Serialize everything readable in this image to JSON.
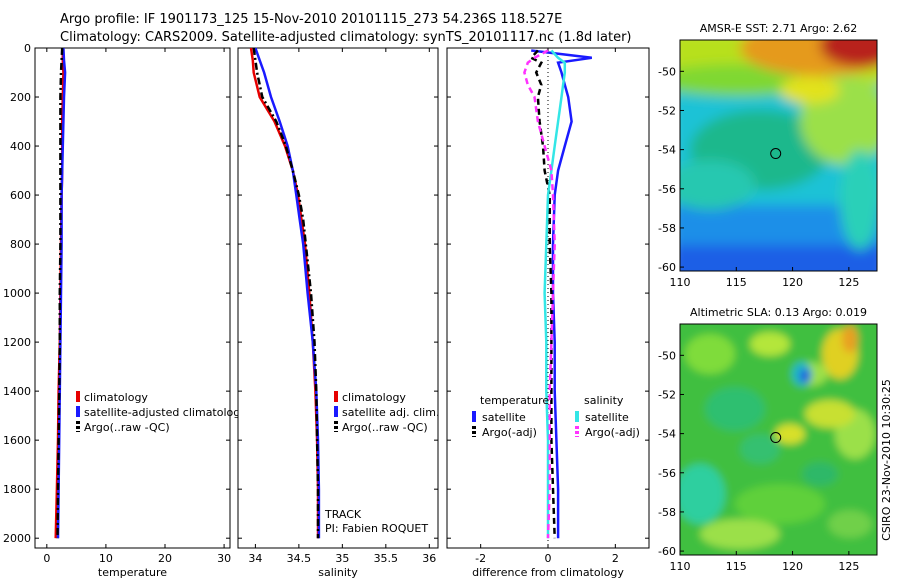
{
  "header": {
    "line1": "Argo profile: IF 1901173_125 15-Nov-2010 20101115_273 54.236S 118.527E",
    "line2": "Climatology: CARS2009. Satellite-adjusted climatology: synTS_20101117.nc (1.8d later)"
  },
  "side_note": "CSIRO 23-Nov-2010 10:30:25",
  "colors": {
    "climatology": "#e60000",
    "satellite": "#1a1aff",
    "argo": "#000000",
    "sat_salinity": "#33e6e6",
    "argo_salinity": "#ff33ff"
  },
  "chart_data": [
    {
      "type": "line",
      "panel": "temperature",
      "xlabel": "temperature",
      "xlim": [
        -2,
        31
      ],
      "xticks": [
        "0",
        "10",
        "20",
        "30"
      ],
      "xtick_values": [
        0,
        10,
        20,
        30
      ],
      "ylim": [
        2040,
        0
      ],
      "yticks": [
        "0",
        "200",
        "400",
        "600",
        "800",
        "1000",
        "1200",
        "1400",
        "1600",
        "1800",
        "2000"
      ],
      "ytick_values": [
        0,
        200,
        400,
        600,
        800,
        1000,
        1200,
        1400,
        1600,
        1800,
        2000
      ],
      "depth": [
        0,
        50,
        100,
        200,
        300,
        400,
        500,
        600,
        800,
        1000,
        1200,
        1400,
        1600,
        1800,
        2000
      ],
      "series": [
        {
          "name": "climatology",
          "color": "#e60000",
          "style": "solid",
          "values": [
            2.7,
            2.7,
            2.8,
            2.7,
            2.6,
            2.6,
            2.6,
            2.5,
            2.4,
            2.3,
            2.2,
            2.0,
            1.9,
            1.7,
            1.5
          ]
        },
        {
          "name": "satellite-adjusted climatology",
          "color": "#1a1aff",
          "style": "solid",
          "values": [
            2.8,
            2.9,
            3.1,
            2.9,
            2.8,
            2.7,
            2.6,
            2.5,
            2.5,
            2.4,
            2.3,
            2.2,
            2.1,
            2.0,
            1.9
          ]
        },
        {
          "name": "Argo(..raw -QC)",
          "color": "#000000",
          "style": "dashdot",
          "values": [
            2.6,
            2.5,
            2.4,
            2.3,
            2.3,
            2.3,
            2.3,
            2.3,
            2.3,
            2.2,
            2.2,
            2.1,
            2.0,
            1.9,
            1.8
          ]
        }
      ],
      "legend": [
        "climatology",
        "satellite-adjusted climatology",
        "Argo(..raw -QC)"
      ]
    },
    {
      "type": "line",
      "panel": "salinity",
      "xlabel": "salinity",
      "xlim": [
        33.8,
        36.1
      ],
      "xticks": [
        "34",
        "34.5",
        "35",
        "35.5",
        "36"
      ],
      "xtick_values": [
        34,
        34.5,
        35,
        35.5,
        36
      ],
      "ylim": [
        2040,
        0
      ],
      "depth": [
        0,
        50,
        100,
        200,
        300,
        400,
        500,
        600,
        700,
        800,
        1000,
        1200,
        1400,
        1600,
        1800,
        2000
      ],
      "series": [
        {
          "name": "climatology",
          "color": "#e60000",
          "style": "solid",
          "values": [
            33.95,
            33.97,
            33.98,
            34.05,
            34.22,
            34.34,
            34.43,
            34.49,
            34.53,
            34.57,
            34.62,
            34.66,
            34.69,
            34.71,
            34.72,
            34.72
          ]
        },
        {
          "name": "satellite adj. clim.",
          "color": "#1a1aff",
          "style": "solid",
          "values": [
            34.0,
            34.05,
            34.1,
            34.18,
            34.28,
            34.37,
            34.43,
            34.47,
            34.51,
            34.55,
            34.6,
            34.66,
            34.7,
            34.72,
            34.73,
            34.73
          ]
        },
        {
          "name": "Argo(..raw -QC)",
          "color": "#000000",
          "style": "dashdot",
          "values": [
            33.98,
            34.0,
            34.02,
            34.08,
            34.24,
            34.35,
            34.43,
            34.5,
            34.55,
            34.58,
            34.64,
            34.68,
            34.7,
            34.71,
            34.72,
            34.72
          ]
        }
      ],
      "legend": [
        "climatology",
        "satellite adj. clim.",
        "Argo(..raw -QC)"
      ],
      "annotation": [
        "TRACK",
        "PI: Fabien ROQUET"
      ]
    },
    {
      "type": "line",
      "panel": "difference",
      "xlabel": "difference from climatology",
      "xlim": [
        -3.0,
        3.0
      ],
      "xticks": [
        "-2",
        "0",
        "2"
      ],
      "xtick_values": [
        -2,
        0,
        2
      ],
      "ylim": [
        2040,
        0
      ],
      "depth": [
        10,
        40,
        60,
        100,
        150,
        200,
        300,
        400,
        500,
        600,
        800,
        1000,
        1200,
        1400,
        1600,
        1800,
        2000
      ],
      "series": [
        {
          "name": "temperature satellite",
          "color": "#1a1aff",
          "style": "solid",
          "values": [
            -0.5,
            1.3,
            0.3,
            0.4,
            0.5,
            0.6,
            0.7,
            0.5,
            0.3,
            0.2,
            0.15,
            0.15,
            0.2,
            0.2,
            0.25,
            0.3,
            0.3
          ]
        },
        {
          "name": "temperature Argo(-adj)",
          "color": "#000000",
          "style": "dashed",
          "values": [
            -0.3,
            -0.5,
            -0.2,
            -0.35,
            -0.2,
            -0.3,
            -0.25,
            -0.15,
            -0.1,
            0.05,
            0.05,
            0.1,
            0.1,
            0.1,
            0.1,
            0.15,
            0.2
          ]
        },
        {
          "name": "salinity satellite",
          "color": "#33e6e6",
          "style": "solid",
          "values": [
            0.1,
            0.3,
            0.5,
            0.5,
            0.45,
            0.4,
            0.3,
            0.2,
            0.1,
            0.0,
            -0.05,
            -0.1,
            -0.05,
            -0.05,
            0.0,
            0.0,
            0.0
          ]
        },
        {
          "name": "salinity Argo(-adj)",
          "color": "#ff33ff",
          "style": "dashed",
          "values": [
            0.0,
            -0.4,
            -0.6,
            -0.7,
            -0.6,
            -0.4,
            -0.3,
            -0.1,
            0.1,
            0.15,
            0.2,
            0.15,
            0.1,
            0.05,
            0.05,
            0.05,
            0.0
          ]
        }
      ],
      "legend_headers": [
        "temperature",
        "salinity"
      ],
      "legend": [
        "satellite",
        "Argo(-adj)",
        "satellite",
        "Argo(-adj)"
      ]
    },
    {
      "type": "heatmap",
      "panel": "sst_map",
      "title": "AMSR-E SST: 2.71 Argo: 2.62",
      "xlim": [
        110,
        127.5
      ],
      "ylim": [
        -60.2,
        -48.4
      ],
      "xticks": [
        "110",
        "115",
        "120",
        "125"
      ],
      "xtick_values": [
        110,
        115,
        120,
        125
      ],
      "yticks": [
        "-50",
        "-52",
        "-54",
        "-56",
        "-58",
        "-60"
      ],
      "ytick_values": [
        -50,
        -52,
        -54,
        -56,
        -58,
        -60
      ],
      "marker": {
        "lon": 118.5,
        "lat": -54.2
      }
    },
    {
      "type": "heatmap",
      "panel": "sla_map",
      "title": "Altimetric SLA: 0.13 Argo: 0.019",
      "xlim": [
        110,
        127.5
      ],
      "ylim": [
        -60.2,
        -48.4
      ],
      "xticks": [
        "110",
        "115",
        "120",
        "125"
      ],
      "xtick_values": [
        110,
        115,
        120,
        125
      ],
      "yticks": [
        "-50",
        "-52",
        "-54",
        "-56",
        "-58",
        "-60"
      ],
      "ytick_values": [
        -50,
        -52,
        -54,
        -56,
        -58,
        -60
      ],
      "marker": {
        "lon": 118.5,
        "lat": -54.2
      }
    }
  ]
}
